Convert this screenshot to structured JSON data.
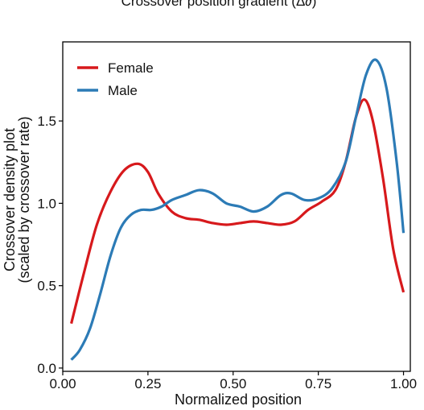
{
  "top_title": "Crossover position gradient (Δ∂)",
  "chart_data": {
    "type": "line",
    "xlabel": "Normalized position",
    "ylabel_line1": "Crossover density plot",
    "ylabel_line2": "(scaled by crossover rate)",
    "xlim": [
      0.0,
      1.02
    ],
    "ylim": [
      -0.02,
      1.98
    ],
    "xticks": [
      0.0,
      0.25,
      0.5,
      0.75,
      1.0
    ],
    "xtick_labels": [
      "0.00",
      "0.25",
      "0.50",
      "0.75",
      "1.00"
    ],
    "yticks": [
      0.0,
      0.5,
      1.0,
      1.5
    ],
    "ytick_labels": [
      "0.0",
      "0.5",
      "1.0",
      "1.5"
    ],
    "legend_position": "top-left",
    "grid": false,
    "series": [
      {
        "name": "Female",
        "color": "#d7191c",
        "points": [
          [
            0.025,
            0.27
          ],
          [
            0.06,
            0.56
          ],
          [
            0.1,
            0.87
          ],
          [
            0.14,
            1.07
          ],
          [
            0.18,
            1.2
          ],
          [
            0.22,
            1.24
          ],
          [
            0.25,
            1.19
          ],
          [
            0.28,
            1.06
          ],
          [
            0.32,
            0.95
          ],
          [
            0.36,
            0.91
          ],
          [
            0.4,
            0.9
          ],
          [
            0.44,
            0.88
          ],
          [
            0.48,
            0.87
          ],
          [
            0.52,
            0.88
          ],
          [
            0.56,
            0.89
          ],
          [
            0.6,
            0.88
          ],
          [
            0.64,
            0.87
          ],
          [
            0.68,
            0.89
          ],
          [
            0.72,
            0.96
          ],
          [
            0.76,
            1.01
          ],
          [
            0.8,
            1.08
          ],
          [
            0.83,
            1.25
          ],
          [
            0.86,
            1.52
          ],
          [
            0.885,
            1.63
          ],
          [
            0.91,
            1.5
          ],
          [
            0.94,
            1.15
          ],
          [
            0.97,
            0.72
          ],
          [
            1.0,
            0.46
          ]
        ]
      },
      {
        "name": "Male",
        "color": "#2c7bb6",
        "points": [
          [
            0.025,
            0.05
          ],
          [
            0.05,
            0.11
          ],
          [
            0.08,
            0.24
          ],
          [
            0.11,
            0.45
          ],
          [
            0.14,
            0.68
          ],
          [
            0.17,
            0.85
          ],
          [
            0.2,
            0.93
          ],
          [
            0.23,
            0.96
          ],
          [
            0.26,
            0.96
          ],
          [
            0.29,
            0.98
          ],
          [
            0.32,
            1.02
          ],
          [
            0.36,
            1.05
          ],
          [
            0.4,
            1.08
          ],
          [
            0.44,
            1.06
          ],
          [
            0.48,
            1.0
          ],
          [
            0.52,
            0.98
          ],
          [
            0.56,
            0.95
          ],
          [
            0.6,
            0.98
          ],
          [
            0.64,
            1.05
          ],
          [
            0.67,
            1.06
          ],
          [
            0.71,
            1.02
          ],
          [
            0.75,
            1.03
          ],
          [
            0.79,
            1.09
          ],
          [
            0.83,
            1.25
          ],
          [
            0.86,
            1.52
          ],
          [
            0.89,
            1.78
          ],
          [
            0.92,
            1.87
          ],
          [
            0.95,
            1.7
          ],
          [
            0.98,
            1.25
          ],
          [
            1.0,
            0.82
          ]
        ]
      }
    ]
  }
}
